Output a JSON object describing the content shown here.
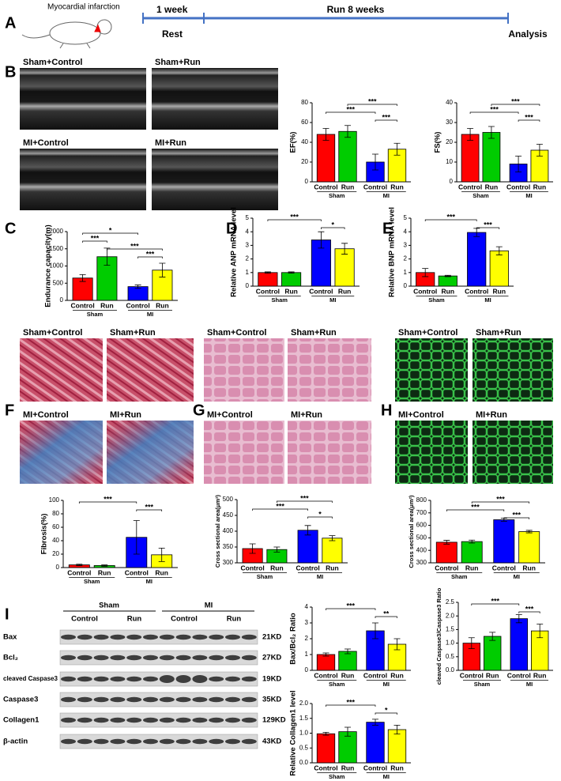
{
  "panel_letters": [
    "A",
    "B",
    "C",
    "D",
    "E",
    "F",
    "G",
    "H",
    "I"
  ],
  "timeline": {
    "event": "Myocardial infarction",
    "phase1": "1 week",
    "phase2": "Run 8 weeks",
    "rest": "Rest",
    "end": "Analysis"
  },
  "image_groups": [
    {
      "labels": [
        "Sham+Control",
        "Sham+Run",
        "MI+Control",
        "MI+Run"
      ]
    },
    {
      "labels": [
        "Sham+Control",
        "Sham+Run",
        "MI+Control",
        "MI+Run"
      ]
    },
    {
      "labels": [
        "Sham+Control",
        "Sham+Run",
        "MI+Control",
        "MI+Run"
      ]
    },
    {
      "labels": [
        "Sham+Control",
        "Sham+Run",
        "MI+Control",
        "MI+Run"
      ]
    }
  ],
  "western_blot": {
    "groups": [
      "Sham",
      "MI"
    ],
    "lanes": [
      "Control",
      "Run",
      "Control",
      "Run"
    ],
    "rows": [
      {
        "protein": "Bax",
        "size": "21KD"
      },
      {
        "protein": "Bcl₂",
        "size": "27KD"
      },
      {
        "protein": "cleaved Caspase3",
        "size": "19KD"
      },
      {
        "protein": "Caspase3",
        "size": "35KD"
      },
      {
        "protein": "Collagen1",
        "size": "129KD"
      },
      {
        "protein": "β-actin",
        "size": "43KD"
      }
    ]
  },
  "chart_data": [
    {
      "type": "bar",
      "ylabel": "EF(%)",
      "categories": [
        "Control",
        "Run",
        "Control",
        "Run"
      ],
      "groups": [
        "Sham",
        "MI"
      ],
      "colors": [
        "#ff0000",
        "#00cc00",
        "#0000ff",
        "#ffff00"
      ],
      "values": [
        48,
        51,
        20,
        33
      ],
      "errors": [
        6,
        6,
        8,
        6
      ],
      "ylim": [
        0,
        80
      ],
      "yticks": [
        0,
        20,
        40,
        60,
        80
      ],
      "comparisons": [
        {
          "pair": [
            1,
            3
          ],
          "label": "***"
        },
        {
          "pair": [
            0,
            2
          ],
          "label": "***"
        },
        {
          "pair": [
            2,
            3
          ],
          "label": "***"
        }
      ]
    },
    {
      "type": "bar",
      "ylabel": "FS(%)",
      "categories": [
        "Control",
        "Run",
        "Control",
        "Run"
      ],
      "groups": [
        "Sham",
        "MI"
      ],
      "colors": [
        "#ff0000",
        "#00cc00",
        "#0000ff",
        "#ffff00"
      ],
      "values": [
        24,
        25,
        9,
        16
      ],
      "errors": [
        3,
        3,
        4,
        3
      ],
      "ylim": [
        0,
        40
      ],
      "yticks": [
        0,
        10,
        20,
        30,
        40
      ],
      "comparisons": [
        {
          "pair": [
            1,
            3
          ],
          "label": "***"
        },
        {
          "pair": [
            0,
            2
          ],
          "label": "***"
        },
        {
          "pair": [
            2,
            3
          ],
          "label": "***"
        }
      ]
    },
    {
      "type": "bar",
      "ylabel": "Endurance capacity(m)",
      "categories": [
        "Control",
        "Run",
        "Control",
        "Run"
      ],
      "groups": [
        "Sham",
        "MI"
      ],
      "colors": [
        "#ff0000",
        "#00cc00",
        "#0000ff",
        "#ffff00"
      ],
      "values": [
        650,
        1270,
        400,
        880
      ],
      "errors": [
        100,
        250,
        50,
        200
      ],
      "ylim": [
        0,
        2000
      ],
      "yticks": [
        0,
        500,
        1000,
        1500,
        2000
      ],
      "comparisons": [
        {
          "pair": [
            0,
            2
          ],
          "label": "*"
        },
        {
          "pair": [
            0,
            1
          ],
          "label": "***"
        },
        {
          "pair": [
            1,
            3
          ],
          "label": "***"
        },
        {
          "pair": [
            2,
            3
          ],
          "label": "***"
        }
      ]
    },
    {
      "type": "bar",
      "ylabel": "Relative ANP mRNA level",
      "categories": [
        "Control",
        "Run",
        "Control",
        "Run"
      ],
      "groups": [
        "Sham",
        "MI"
      ],
      "colors": [
        "#ff0000",
        "#00cc00",
        "#0000ff",
        "#ffff00"
      ],
      "values": [
        1.0,
        1.0,
        3.4,
        2.75
      ],
      "errors": [
        0.05,
        0.05,
        0.6,
        0.4
      ],
      "ylim": [
        0,
        5
      ],
      "yticks": [
        0,
        1,
        2,
        3,
        4,
        5
      ],
      "comparisons": [
        {
          "pair": [
            0,
            2
          ],
          "label": "***"
        },
        {
          "pair": [
            2,
            3
          ],
          "label": "*"
        }
      ]
    },
    {
      "type": "bar",
      "ylabel": "Relative BNP mRNA level",
      "categories": [
        "Control",
        "Run",
        "Control",
        "Run"
      ],
      "groups": [
        "Sham",
        "MI"
      ],
      "colors": [
        "#ff0000",
        "#00cc00",
        "#0000ff",
        "#ffff00"
      ],
      "values": [
        1.0,
        0.75,
        3.95,
        2.6
      ],
      "errors": [
        0.3,
        0.05,
        0.3,
        0.3
      ],
      "ylim": [
        0,
        5
      ],
      "yticks": [
        0,
        1,
        2,
        3,
        4,
        5
      ],
      "comparisons": [
        {
          "pair": [
            0,
            2
          ],
          "label": "***"
        },
        {
          "pair": [
            2,
            3
          ],
          "label": "***"
        }
      ]
    },
    {
      "type": "bar",
      "ylabel": "Fibrosis(%)",
      "categories": [
        "Control",
        "Run",
        "Control",
        "Run"
      ],
      "groups": [
        "Sham",
        "MI"
      ],
      "colors": [
        "#ff0000",
        "#00cc00",
        "#0000ff",
        "#ffff00"
      ],
      "values": [
        4,
        3,
        45,
        19
      ],
      "errors": [
        1,
        1,
        25,
        10
      ],
      "ylim": [
        0,
        100
      ],
      "yticks": [
        0,
        20,
        40,
        60,
        80,
        100
      ],
      "comparisons": [
        {
          "pair": [
            0,
            2
          ],
          "label": "***"
        },
        {
          "pair": [
            2,
            3
          ],
          "label": "***"
        }
      ]
    },
    {
      "type": "bar",
      "ylabel": "Cross sectional area(μm²)",
      "categories": [
        "Control",
        "Run",
        "Control",
        "Run"
      ],
      "groups": [
        "Sham",
        "MI"
      ],
      "colors": [
        "#ff0000",
        "#00cc00",
        "#0000ff",
        "#ffff00"
      ],
      "values": [
        345,
        342,
        403,
        378
      ],
      "errors": [
        15,
        8,
        15,
        8
      ],
      "ylim": [
        300,
        500
      ],
      "yticks": [
        300,
        350,
        400,
        450,
        500
      ],
      "comparisons": [
        {
          "pair": [
            1,
            3
          ],
          "label": "***"
        },
        {
          "pair": [
            0,
            2
          ],
          "label": "***"
        },
        {
          "pair": [
            2,
            3
          ],
          "label": "*"
        }
      ]
    },
    {
      "type": "bar",
      "ylabel": "Cross sectional area(μm²)",
      "categories": [
        "Control",
        "Run",
        "Control",
        "Run"
      ],
      "groups": [
        "Sham",
        "MI"
      ],
      "colors": [
        "#ff0000",
        "#00cc00",
        "#0000ff",
        "#ffff00"
      ],
      "values": [
        465,
        470,
        645,
        550
      ],
      "errors": [
        15,
        12,
        12,
        10
      ],
      "ylim": [
        300,
        800
      ],
      "yticks": [
        300,
        400,
        500,
        600,
        700,
        800
      ],
      "comparisons": [
        {
          "pair": [
            1,
            3
          ],
          "label": "***"
        },
        {
          "pair": [
            0,
            2
          ],
          "label": "***"
        },
        {
          "pair": [
            2,
            3
          ],
          "label": "***"
        }
      ]
    },
    {
      "type": "bar",
      "ylabel": "Bax/Bcl₂ Ratio",
      "categories": [
        "Control",
        "Run",
        "Control",
        "Run"
      ],
      "groups": [
        "Sham",
        "MI"
      ],
      "colors": [
        "#ff0000",
        "#00cc00",
        "#0000ff",
        "#ffff00"
      ],
      "values": [
        1.0,
        1.2,
        2.5,
        1.65
      ],
      "errors": [
        0.1,
        0.15,
        0.5,
        0.35
      ],
      "ylim": [
        0,
        4
      ],
      "yticks": [
        0,
        1,
        2,
        3,
        4
      ],
      "comparisons": [
        {
          "pair": [
            0,
            2
          ],
          "label": "***"
        },
        {
          "pair": [
            2,
            3
          ],
          "label": "**"
        }
      ]
    },
    {
      "type": "bar",
      "ylabel": "cleaved Caspase3/Caspase3 Ratio",
      "categories": [
        "Control",
        "Run",
        "Control",
        "Run"
      ],
      "groups": [
        "Sham",
        "MI"
      ],
      "colors": [
        "#ff0000",
        "#00cc00",
        "#0000ff",
        "#ffff00"
      ],
      "values": [
        1.0,
        1.25,
        1.9,
        1.45
      ],
      "errors": [
        0.2,
        0.15,
        0.15,
        0.25
      ],
      "ylim": [
        0,
        2.5
      ],
      "yticks": [
        {
          "value": 0,
          "label": "0.0"
        },
        0.5,
        {
          "value": 1,
          "label": "1.0"
        },
        1.5,
        {
          "value": 2,
          "label": "2.0"
        },
        2.5
      ],
      "comparisons": [
        {
          "pair": [
            0,
            2
          ],
          "label": "***"
        },
        {
          "pair": [
            2,
            3
          ],
          "label": "***"
        }
      ]
    },
    {
      "type": "bar",
      "ylabel": "Relative Collagen1 level",
      "categories": [
        "Control",
        "Run",
        "Control",
        "Run"
      ],
      "groups": [
        "Sham",
        "MI"
      ],
      "colors": [
        "#ff0000",
        "#00cc00",
        "#0000ff",
        "#ffff00"
      ],
      "values": [
        0.98,
        1.05,
        1.37,
        1.12
      ],
      "errors": [
        0.05,
        0.15,
        0.1,
        0.15
      ],
      "ylim": [
        0,
        2
      ],
      "yticks": [
        {
          "value": 0,
          "label": "0.0"
        },
        0.5,
        {
          "value": 1,
          "label": "1.0"
        },
        1.5,
        {
          "value": 2,
          "label": "2.0"
        }
      ],
      "comparisons": [
        {
          "pair": [
            0,
            2
          ],
          "label": "***"
        },
        {
          "pair": [
            2,
            3
          ],
          "label": "*"
        }
      ]
    }
  ]
}
